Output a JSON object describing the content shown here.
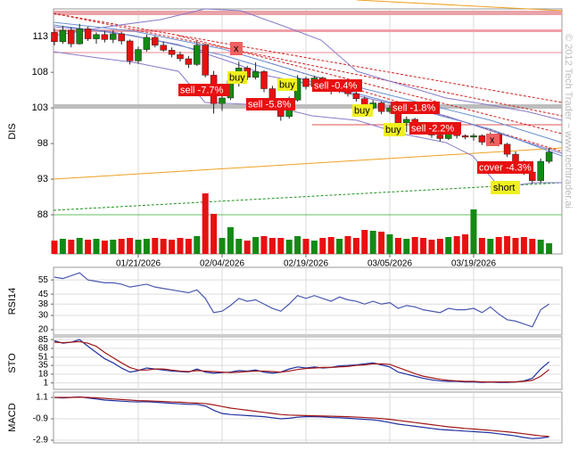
{
  "chart_data": [
    {
      "type": "candlestick",
      "y_label": "DIS",
      "categories": [
        null,
        null,
        null,
        null,
        null,
        null,
        null,
        null,
        null,
        null,
        "01/21/2026",
        null,
        null,
        null,
        null,
        null,
        null,
        null,
        null,
        null,
        "02/04/2026",
        null,
        null,
        null,
        null,
        null,
        null,
        null,
        null,
        null,
        "02/19/2026",
        null,
        null,
        null,
        null,
        null,
        null,
        null,
        null,
        null,
        "03/05/2026",
        null,
        null,
        null,
        null,
        null,
        null,
        null,
        null,
        null,
        "03/19/2026",
        null,
        null,
        null,
        null,
        null,
        null,
        null,
        null,
        null
      ],
      "open": [
        113.6,
        112.3,
        113.9,
        112,
        114.1,
        112.7,
        113.3,
        112.6,
        113.4,
        112.4,
        109.6,
        111.2,
        112.9,
        111.8,
        111.1,
        110.5,
        109.9,
        109.1,
        111.8,
        107.6,
        103.6,
        104.4,
        106.8,
        108.6,
        107.3,
        108.1,
        105.7,
        103.5,
        101.8,
        104.1,
        107.1,
        106,
        107.2,
        106.1,
        105.3,
        106.5,
        105,
        104.3,
        103,
        103.7,
        102.5,
        103,
        100.9,
        101.4,
        100.5,
        99.8,
        99.2,
        98.7,
        99.5,
        99.1,
        98.9,
        99.1,
        98.2,
        99.3,
        97.9,
        96.5,
        95.2,
        94,
        92.8,
        95.5
      ],
      "high": [
        114.2,
        114.5,
        114.3,
        114.8,
        114.4,
        113.6,
        113.8,
        113.9,
        113.7,
        112.6,
        111.6,
        113.3,
        113.1,
        112.3,
        111.5,
        110.9,
        110.3,
        112.4,
        112,
        108.2,
        105.2,
        107.2,
        109.5,
        108.9,
        109.4,
        108.3,
        106.1,
        104,
        104.6,
        107.6,
        107.4,
        107.5,
        107.4,
        106.5,
        106.8,
        106.8,
        105.4,
        104.6,
        104.1,
        103.9,
        103.4,
        103.3,
        101.8,
        101.6,
        100.8,
        100.1,
        99.6,
        99.9,
        99.8,
        99.3,
        99.4,
        99.3,
        99.6,
        99.5,
        98.1,
        96.9,
        95.6,
        94.4,
        95.9,
        97.4
      ],
      "low": [
        111.8,
        112,
        111.5,
        111.9,
        112.4,
        112,
        112.2,
        112.1,
        111.9,
        109.1,
        109.2,
        110.9,
        111.5,
        110.9,
        110.1,
        109.5,
        108.6,
        108.9,
        107.3,
        102.2,
        102.6,
        104.1,
        106,
        106.9,
        107,
        105.2,
        102.9,
        101.2,
        101.5,
        103.9,
        105.6,
        105.7,
        105.8,
        104.9,
        105.1,
        104.6,
        103.9,
        102.6,
        102.8,
        102.1,
        102.2,
        100.4,
        99.6,
        100.1,
        99.3,
        98.8,
        98.3,
        98.5,
        98.7,
        98.6,
        98.4,
        97.8,
        98,
        97.6,
        96.1,
        94.8,
        93.6,
        92.4,
        92.5,
        95.2
      ],
      "close": [
        112.3,
        113.9,
        112,
        114.1,
        112.7,
        113.3,
        112.6,
        113.4,
        112.4,
        109.6,
        111.2,
        112.9,
        111.8,
        111.1,
        110.5,
        109.9,
        109.1,
        111.8,
        107.6,
        103.6,
        104.4,
        106.8,
        108.6,
        107.3,
        108.1,
        105.7,
        103.5,
        101.8,
        104.1,
        107.1,
        106,
        107.2,
        106.1,
        105.3,
        106.5,
        105,
        104.3,
        103,
        103.7,
        102.5,
        103,
        100.9,
        101.4,
        100.5,
        99.8,
        99.2,
        98.7,
        99.5,
        99.1,
        98.9,
        99.1,
        98.2,
        99.3,
        97.9,
        96.5,
        95.2,
        94,
        92.8,
        95.5,
        96.8
      ],
      "volume": [
        15,
        17,
        16,
        18,
        16,
        17,
        15,
        16,
        17,
        18,
        16,
        17,
        18,
        17,
        16,
        18,
        17,
        20,
        68,
        45,
        18,
        30,
        17,
        15,
        19,
        20,
        18,
        18,
        16,
        20,
        17,
        15,
        18,
        19,
        17,
        20,
        18,
        27,
        26,
        25,
        22,
        18,
        17,
        19,
        18,
        16,
        17,
        19,
        20,
        22,
        50,
        18,
        17,
        19,
        20,
        18,
        19,
        17,
        16,
        12
      ],
      "up_color": "#138a13",
      "down_color": "#e81010",
      "ylim": [
        82.5,
        116.9
      ],
      "yticks": [
        113,
        108,
        103,
        98,
        93,
        88
      ],
      "grid": "x",
      "annotations": [
        "sell -7.7%",
        "buy",
        "x",
        "buy",
        "sell -5.8%",
        "sell -0.4%",
        "buy",
        "sell -1.8%",
        "buy",
        "sell -2.2%",
        "x",
        "cover -4.3%",
        "short"
      ]
    },
    {
      "type": "line",
      "y_label": "RSI14",
      "series": [
        {
          "color": "#4a58b0",
          "values": [
            57,
            56,
            58,
            60,
            55,
            54,
            53,
            53,
            52,
            50,
            51,
            52,
            50,
            49,
            48,
            47,
            46,
            48,
            42,
            32,
            33,
            37,
            42,
            40,
            41,
            38,
            35,
            33,
            38,
            44,
            42,
            44,
            42,
            40,
            43,
            41,
            40,
            38,
            40,
            38,
            39,
            35,
            37,
            36,
            34,
            33,
            32,
            35,
            34,
            34,
            35,
            32,
            36,
            31,
            27,
            26,
            24,
            22,
            34,
            38
          ]
        }
      ],
      "ylim": [
        16.2,
        63.9
      ],
      "yticks": [
        55,
        45,
        38,
        30,
        20
      ],
      "grid": "both"
    },
    {
      "type": "line",
      "y_label": "STO",
      "series": [
        {
          "color": "#2030a0",
          "values": [
            83,
            78,
            80,
            85,
            72,
            60,
            48,
            40,
            30,
            22,
            25,
            30,
            28,
            26,
            24,
            23,
            22,
            28,
            22,
            20,
            21,
            22,
            25,
            24,
            26,
            22,
            20,
            22,
            28,
            32,
            30,
            32,
            30,
            31,
            34,
            35,
            36,
            38,
            40,
            36,
            32,
            22,
            18,
            14,
            10,
            7,
            5,
            4,
            4,
            3,
            3,
            2,
            3,
            2,
            2,
            3,
            5,
            10,
            28,
            42
          ]
        },
        {
          "color": "#a01818",
          "values": [
            80,
            79,
            80,
            81,
            78,
            72,
            60,
            50,
            40,
            31,
            26,
            26,
            28,
            28,
            26,
            24,
            23,
            25,
            24,
            23,
            22,
            21,
            22,
            23,
            24,
            24,
            23,
            22,
            24,
            27,
            29,
            30,
            31,
            31,
            32,
            33,
            35,
            36,
            38,
            38,
            37,
            31,
            25,
            19,
            14,
            11,
            8,
            6,
            5,
            4,
            4,
            3,
            3,
            3,
            3,
            3,
            4,
            6,
            14,
            27
          ]
        }
      ],
      "ylim": [
        -11.5,
        90.4
      ],
      "yticks": [
        85,
        68,
        51,
        35,
        18,
        1
      ],
      "grid": "both"
    },
    {
      "type": "line",
      "y_label": "MACD",
      "series": [
        {
          "color": "#2030a0",
          "values": [
            1.1,
            1.05,
            1.1,
            1.15,
            1.05,
            0.95,
            0.85,
            0.8,
            0.75,
            0.7,
            0.68,
            0.7,
            0.65,
            0.6,
            0.55,
            0.5,
            0.45,
            0.45,
            0.3,
            -0.1,
            -0.4,
            -0.5,
            -0.55,
            -0.6,
            -0.65,
            -0.7,
            -0.8,
            -0.9,
            -0.85,
            -0.75,
            -0.7,
            -0.7,
            -0.72,
            -0.78,
            -0.8,
            -0.85,
            -0.9,
            -0.95,
            -1.0,
            -1.1,
            -1.25,
            -1.4,
            -1.5,
            -1.6,
            -1.7,
            -1.8,
            -1.9,
            -1.95,
            -2.0,
            -2.05,
            -2.1,
            -2.15,
            -2.2,
            -2.3,
            -2.4,
            -2.5,
            -2.65,
            -2.75,
            -2.7,
            -2.6
          ]
        },
        {
          "color": "#a01818",
          "values": [
            1.1,
            1.1,
            1.1,
            1.12,
            1.1,
            1.06,
            1.0,
            0.95,
            0.9,
            0.85,
            0.8,
            0.78,
            0.75,
            0.72,
            0.68,
            0.65,
            0.6,
            0.57,
            0.52,
            0.4,
            0.25,
            0.1,
            0.0,
            -0.1,
            -0.2,
            -0.3,
            -0.4,
            -0.5,
            -0.55,
            -0.58,
            -0.6,
            -0.62,
            -0.64,
            -0.66,
            -0.68,
            -0.7,
            -0.74,
            -0.78,
            -0.82,
            -0.88,
            -0.95,
            -1.05,
            -1.15,
            -1.25,
            -1.35,
            -1.45,
            -1.55,
            -1.65,
            -1.72,
            -1.8,
            -1.86,
            -1.92,
            -1.98,
            -2.05,
            -2.12,
            -2.2,
            -2.3,
            -2.4,
            -2.5,
            -2.55
          ]
        }
      ],
      "ylim": [
        -3.15,
        1.6
      ],
      "yticks": [
        1.1,
        -0.9,
        -2.9
      ],
      "grid": "both"
    }
  ],
  "watermark": "© 2012 Tech Trader ~ www.techtrader.ai"
}
